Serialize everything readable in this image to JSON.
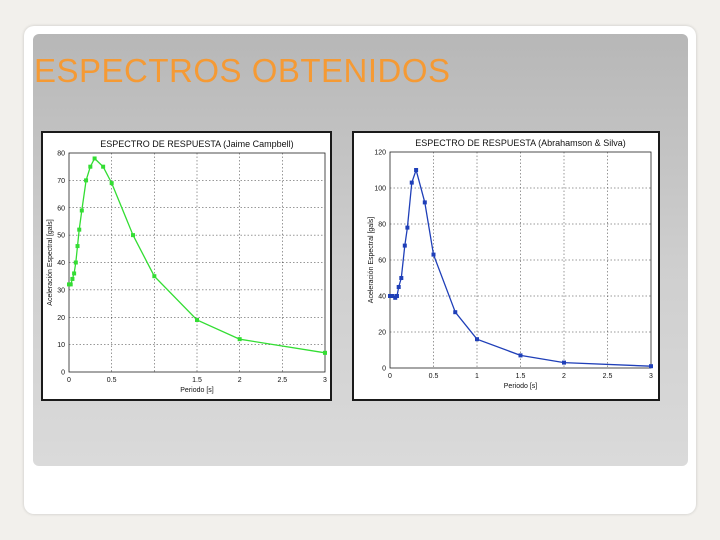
{
  "slide": {
    "title": "ESPECTROS OBTENIDOS"
  },
  "colors": {
    "title": "#f59a34",
    "series_left": "#33dd33",
    "series_right": "#1f3fb8",
    "grid": "#000000"
  },
  "chart_data": [
    {
      "type": "line",
      "title": "ESPECTRO DE RESPUESTA (Jaime Campbell)",
      "xlabel": "Periodo [s]",
      "ylabel": "Aceleración Espectral [gals]",
      "xlim": [
        0,
        3
      ],
      "ylim": [
        0,
        80
      ],
      "xticks": [
        0,
        0.5,
        1,
        1.5,
        2,
        2.5,
        3
      ],
      "xtick_labels": [
        "0",
        "0.5",
        "",
        "1.5",
        "2",
        "2.5",
        "3"
      ],
      "yticks": [
        0,
        10,
        20,
        30,
        40,
        50,
        60,
        70,
        80
      ],
      "grid": true,
      "x": [
        0,
        0.02,
        0.04,
        0.06,
        0.08,
        0.1,
        0.12,
        0.15,
        0.2,
        0.25,
        0.3,
        0.4,
        0.5,
        0.75,
        1.0,
        1.5,
        2.0,
        3.0
      ],
      "y": [
        32,
        32,
        34,
        36,
        40,
        46,
        52,
        59,
        70,
        75,
        78,
        75,
        69,
        50,
        35,
        19,
        12,
        7
      ],
      "color": "#33dd33"
    },
    {
      "type": "line",
      "title": "ESPECTRO DE RESPUESTA (Abrahamson & Silva)",
      "xlabel": "Periodo [s]",
      "ylabel": "Aceleración Espectral [gals]",
      "xlim": [
        0,
        3
      ],
      "ylim": [
        0,
        120
      ],
      "xticks": [
        0,
        0.5,
        1,
        1.5,
        2,
        2.5,
        3
      ],
      "xtick_labels": [
        "0",
        "0.5",
        "1",
        "1.5",
        "2",
        "2.5",
        "3"
      ],
      "yticks": [
        0,
        20,
        40,
        60,
        80,
        100,
        120
      ],
      "ytick_labels": [
        "0",
        "20",
        "40",
        "60",
        "80",
        "100",
        "120"
      ],
      "grid": true,
      "x": [
        0,
        0.03,
        0.06,
        0.08,
        0.1,
        0.13,
        0.17,
        0.2,
        0.25,
        0.3,
        0.4,
        0.5,
        0.75,
        1.0,
        1.5,
        2.0,
        3.0
      ],
      "y": [
        40,
        40,
        39,
        40,
        45,
        50,
        68,
        78,
        103,
        110,
        92,
        63,
        31,
        16,
        7,
        3,
        1
      ],
      "color": "#1f3fb8"
    }
  ]
}
